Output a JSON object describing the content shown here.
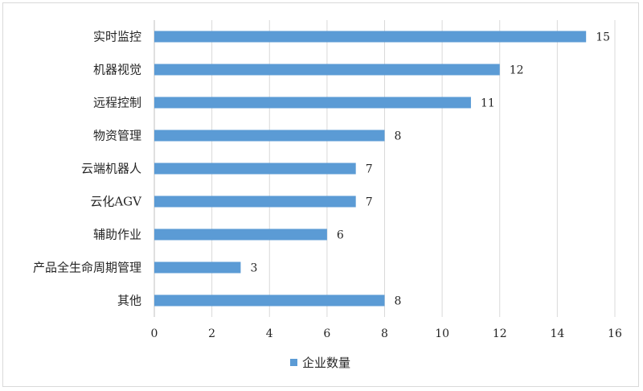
{
  "chart_data": {
    "type": "bar",
    "orientation": "horizontal",
    "categories": [
      "实时监控",
      "机器视觉",
      "远程控制",
      "物资管理",
      "云端机器人",
      "云化AGV",
      "辅助作业",
      "产品全生命周期管理",
      "其他"
    ],
    "series": [
      {
        "name": "企业数量",
        "values": [
          15,
          12,
          11,
          8,
          7,
          7,
          6,
          3,
          8
        ],
        "color": "#5b9bd5"
      }
    ],
    "xlim": [
      0,
      16
    ],
    "xticks": [
      0,
      2,
      4,
      6,
      8,
      10,
      12,
      14,
      16
    ],
    "grid": true,
    "data_labels": true,
    "legend_position": "bottom"
  },
  "legend": {
    "label": "企业数量",
    "color": "#5b9bd5"
  }
}
